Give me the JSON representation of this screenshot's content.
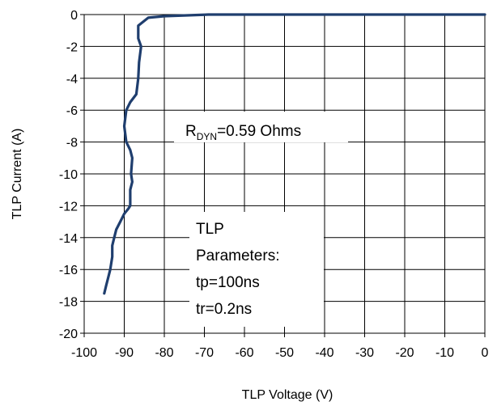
{
  "chart_data": {
    "type": "line",
    "xlabel": "TLP Voltage (V)",
    "ylabel": "TLP Current (A)",
    "xlim": [
      -100,
      0
    ],
    "ylim": [
      -20,
      0
    ],
    "xticks": [
      -100,
      -90,
      -80,
      -70,
      -60,
      -50,
      -40,
      -30,
      -20,
      -10,
      0
    ],
    "yticks": [
      -20,
      -18,
      -16,
      -14,
      -12,
      -10,
      -8,
      -6,
      -4,
      -2,
      0
    ],
    "grid": true,
    "series": [
      {
        "color": "#1f3e6e",
        "x": [
          0,
          -30,
          -60,
          -69,
          -80,
          -84,
          -86.5,
          -86.5,
          -85.8,
          -86.3,
          -86.5,
          -87,
          -88.5,
          -89.5,
          -90,
          -89.5,
          -88.5,
          -88,
          -88.3,
          -88,
          -88.5,
          -88.5,
          -89,
          -90,
          -91,
          -92,
          -92.5,
          -93,
          -93,
          -93.5,
          -94,
          -94.5,
          -95
        ],
        "y": [
          0,
          0,
          0,
          0,
          -0.1,
          -0.2,
          -0.7,
          -1.5,
          -2,
          -3,
          -4,
          -5,
          -5.5,
          -6,
          -7,
          -8,
          -8.5,
          -9,
          -10,
          -10.5,
          -11,
          -12,
          -12.2,
          -12.5,
          -13,
          -13.5,
          -14,
          -14.5,
          -15.2,
          -16,
          -16.5,
          -17,
          -17.5
        ]
      }
    ],
    "annotations": {
      "rdyn_main": "R",
      "rdyn_sub": "DYN",
      "rdyn_rest": "=0.59  Ohms",
      "params": [
        "TLP",
        "Parameters:",
        "tp=100ns",
        "tr=0.2ns"
      ]
    }
  }
}
